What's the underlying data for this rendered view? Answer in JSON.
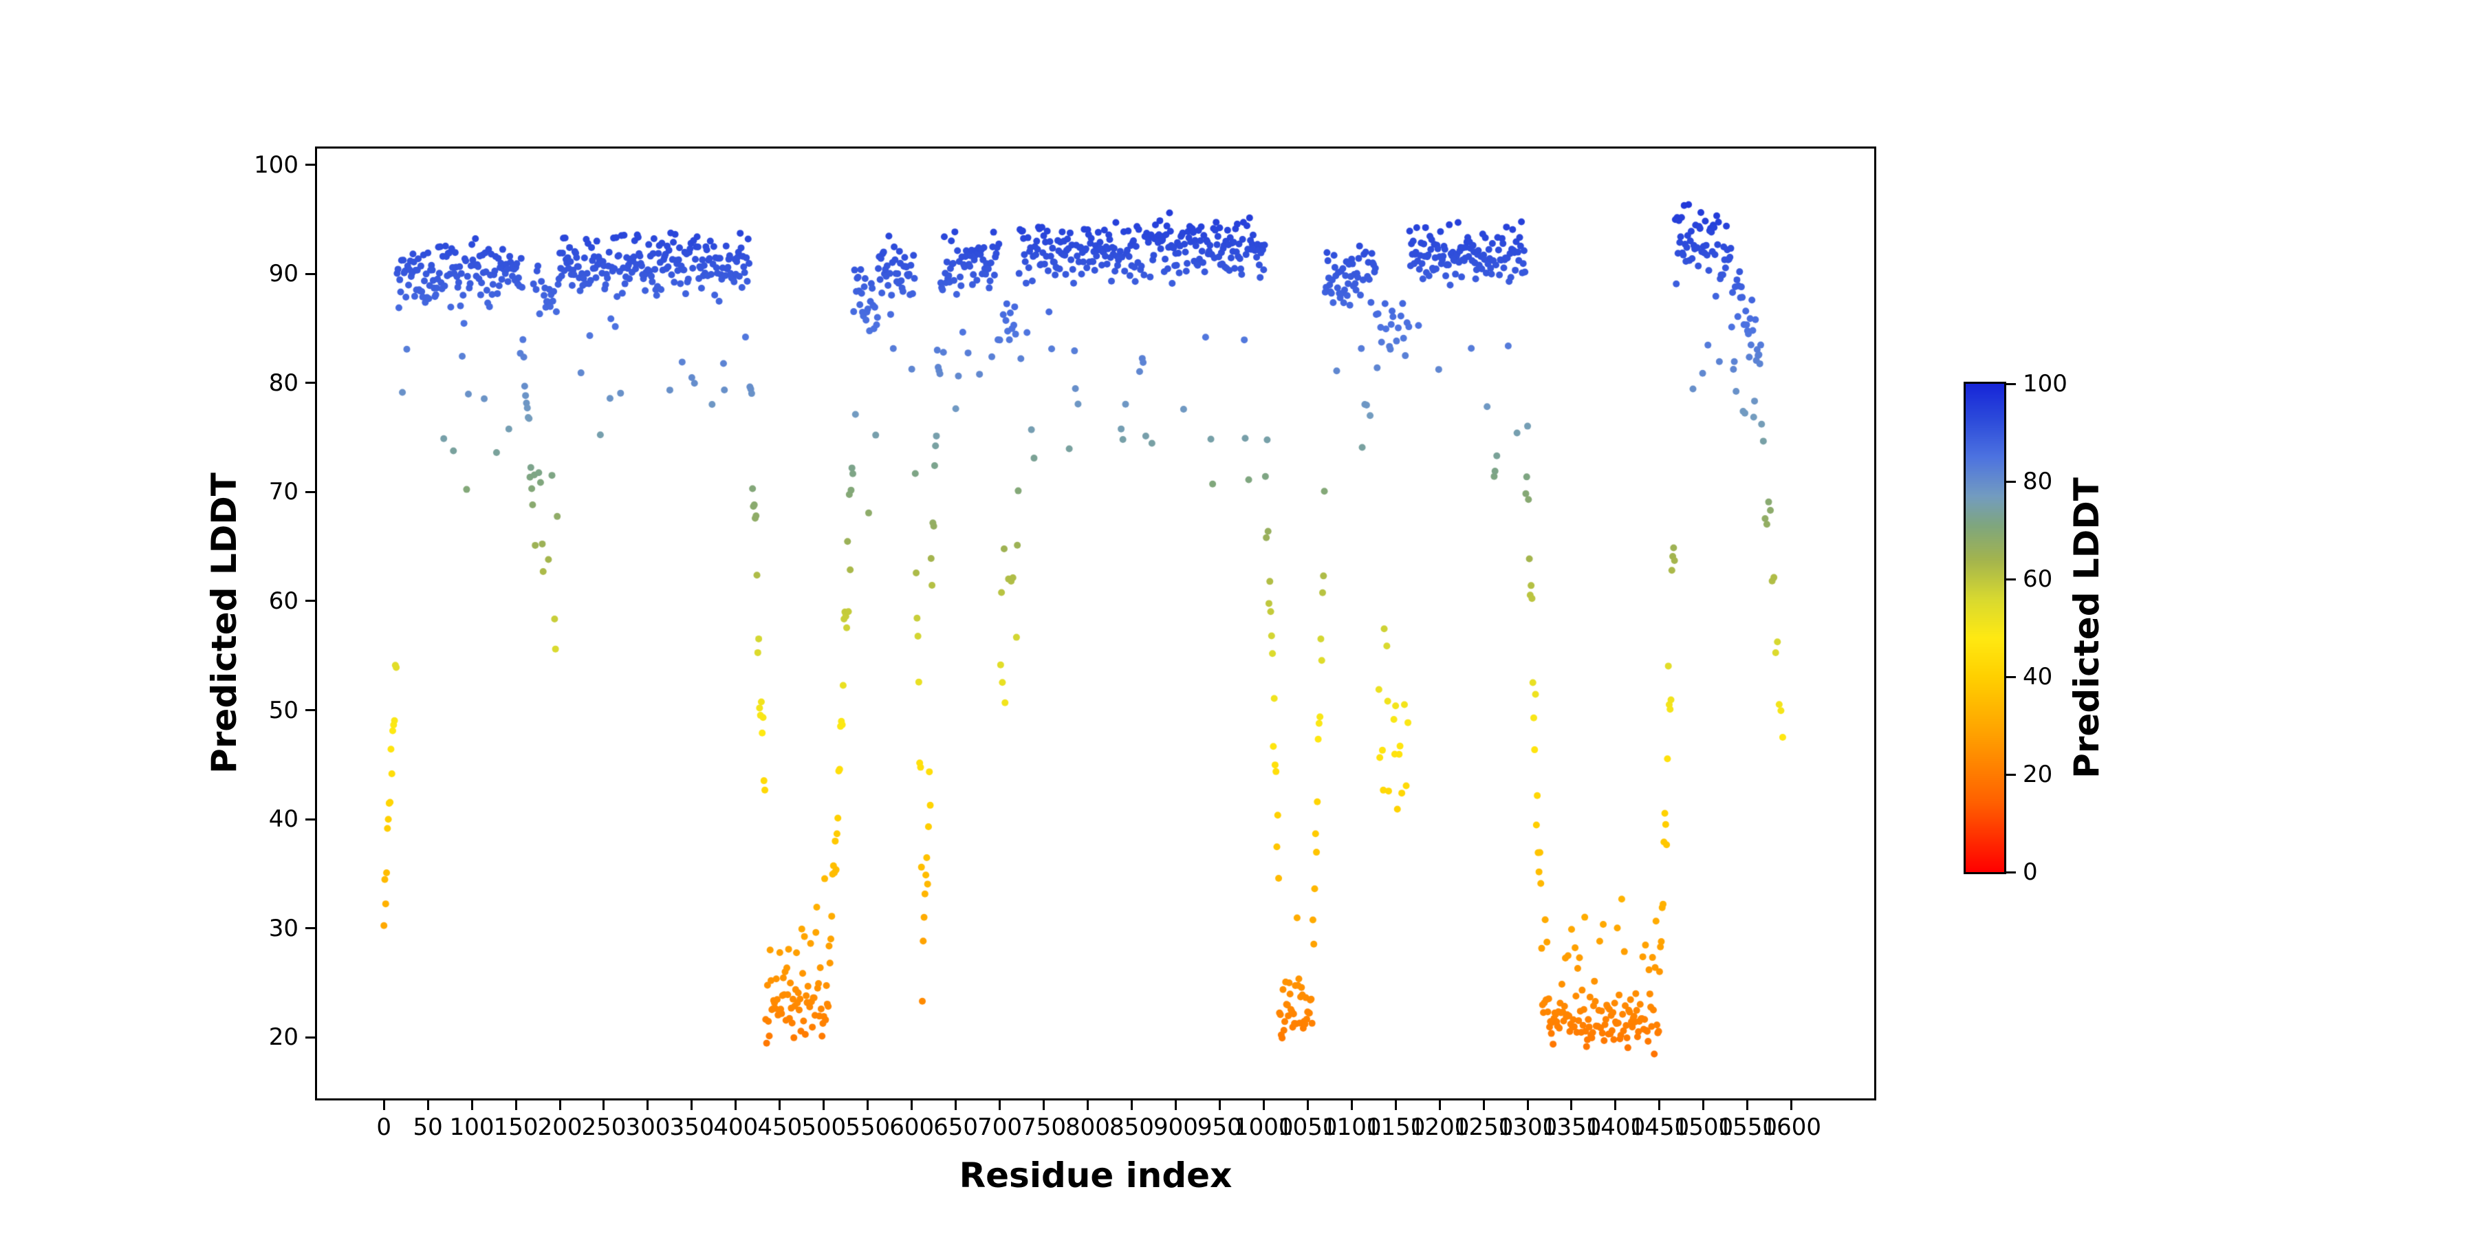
{
  "chart_data": {
    "type": "scatter",
    "title": "",
    "xlabel": "Residue index",
    "ylabel": "Predicted LDDT",
    "xlim": [
      -76,
      1694
    ],
    "ylim": [
      14.4,
      101.5
    ],
    "xticks": [
      0,
      50,
      100,
      150,
      200,
      250,
      300,
      350,
      400,
      450,
      500,
      550,
      600,
      650,
      700,
      750,
      800,
      850,
      900,
      950,
      1000,
      1050,
      1100,
      1150,
      1200,
      1250,
      1300,
      1350,
      1400,
      1450,
      1500,
      1550,
      1600
    ],
    "yticks": [
      20,
      30,
      40,
      50,
      60,
      70,
      80,
      90,
      100
    ],
    "grid": false,
    "legend": "none",
    "point_radius_px": 5,
    "point_value_range": [
      17.6,
      98.6
    ],
    "seed": 42,
    "colormap": {
      "stops": [
        [
          0.0,
          "#ff0000"
        ],
        [
          0.14,
          "#ff5f00"
        ],
        [
          0.28,
          "#ffa000"
        ],
        [
          0.4,
          "#ffd000"
        ],
        [
          0.48,
          "#ffe912"
        ],
        [
          0.56,
          "#d8d930"
        ],
        [
          0.64,
          "#a3b44e"
        ],
        [
          0.71,
          "#7fa67e"
        ],
        [
          0.77,
          "#739cc0"
        ],
        [
          0.85,
          "#4d73e0"
        ],
        [
          0.93,
          "#2b49da"
        ],
        [
          1.0,
          "#1726d8"
        ]
      ]
    },
    "colorbar": {
      "label": "Predicted LDDT",
      "vmin": 0,
      "vmax": 100,
      "ticks": [
        0,
        20,
        40,
        60,
        80,
        100
      ]
    },
    "points_encoding": "segments",
    "segments": [
      {
        "x0": 0,
        "x1": 15,
        "y0": 30,
        "y1": 58,
        "jitter": 5
      },
      {
        "x0": 15,
        "x1": 158,
        "y0": 90,
        "y1": 90,
        "jitter": 3.4,
        "out_p": 0.1,
        "out_lo": -18,
        "out_hi": -5
      },
      {
        "x0": 158,
        "x1": 170,
        "y0": 84,
        "y1": 68,
        "jitter": 4
      },
      {
        "x0": 170,
        "x1": 198,
        "y0": 88,
        "y1": 88,
        "jitter": 3.5,
        "out_p": 0.5,
        "out_lo": -33,
        "out_hi": -16
      },
      {
        "x0": 198,
        "x1": 416,
        "y0": 90.5,
        "y1": 91,
        "jitter": 3.2,
        "out_p": 0.08,
        "out_lo": -14,
        "out_hi": -4
      },
      {
        "x0": 416,
        "x1": 434,
        "y0": 80,
        "y1": 40,
        "jitter": 6
      },
      {
        "x0": 434,
        "x1": 506,
        "y0": 23,
        "y1": 23,
        "jitter": 4,
        "out_p": 0.1,
        "out_lo": 3,
        "out_hi": 9
      },
      {
        "x0": 506,
        "x1": 534,
        "y0": 26,
        "y1": 74,
        "jitter": 6
      },
      {
        "x0": 534,
        "x1": 548,
        "y0": 88,
        "y1": 89,
        "jitter": 3.4,
        "out_p": 0.12,
        "out_lo": -14,
        "out_hi": -4
      },
      {
        "x0": 548,
        "x1": 562,
        "y0": 87,
        "y1": 87,
        "jitter": 3.6,
        "out_p": 0.45,
        "out_lo": -29,
        "out_hi": -9
      },
      {
        "x0": 562,
        "x1": 604,
        "y0": 90.5,
        "y1": 90.5,
        "jitter": 3.2,
        "out_p": 0.12,
        "out_lo": -16,
        "out_hi": -5
      },
      {
        "x0": 604,
        "x1": 612,
        "y0": 72,
        "y1": 34,
        "jitter": 7
      },
      {
        "x0": 612,
        "x1": 622,
        "y0": 27,
        "y1": 42,
        "jitter": 6
      },
      {
        "x0": 622,
        "x1": 632,
        "y0": 62,
        "y1": 86,
        "jitter": 6
      },
      {
        "x0": 632,
        "x1": 700,
        "y0": 90.5,
        "y1": 91.5,
        "jitter": 3.2,
        "out_p": 0.1,
        "out_lo": -15,
        "out_hi": -4
      },
      {
        "x0": 700,
        "x1": 722,
        "y0": 85,
        "y1": 85,
        "jitter": 4,
        "out_p": 0.5,
        "out_lo": -38,
        "out_hi": -14
      },
      {
        "x0": 722,
        "x1": 1002,
        "y0": 92,
        "y1": 92.5,
        "jitter": 3.4,
        "out_p": 0.09,
        "out_lo": -21,
        "out_hi": -4
      },
      {
        "x0": 1002,
        "x1": 1018,
        "y0": 74,
        "y1": 32,
        "jitter": 8
      },
      {
        "x0": 1018,
        "x1": 1056,
        "y0": 23,
        "y1": 23,
        "jitter": 3.6,
        "out_p": 0.1,
        "out_lo": 3,
        "out_hi": 9
      },
      {
        "x0": 1056,
        "x1": 1070,
        "y0": 27,
        "y1": 72,
        "jitter": 7
      },
      {
        "x0": 1070,
        "x1": 1128,
        "y0": 89,
        "y1": 90,
        "jitter": 3.3,
        "out_p": 0.12,
        "out_lo": -18,
        "out_hi": -5
      },
      {
        "x0": 1128,
        "x1": 1166,
        "y0": 85,
        "y1": 85,
        "jitter": 4,
        "out_p": 0.55,
        "out_lo": -44,
        "out_hi": -26
      },
      {
        "x0": 1166,
        "x1": 1298,
        "y0": 91.5,
        "y1": 92,
        "jitter": 3.3,
        "out_p": 0.1,
        "out_lo": -22,
        "out_hi": -5
      },
      {
        "x0": 1298,
        "x1": 1316,
        "y0": 76,
        "y1": 30,
        "jitter": 7
      },
      {
        "x0": 1316,
        "x1": 1452,
        "y0": 21.5,
        "y1": 21.5,
        "jitter": 3.2,
        "out_p": 0.12,
        "out_lo": 3,
        "out_hi": 9
      },
      {
        "x0": 1452,
        "x1": 1468,
        "y0": 26,
        "y1": 70,
        "jitter": 8
      },
      {
        "x0": 1468,
        "x1": 1532,
        "y0": 93.5,
        "y1": 92.5,
        "jitter": 3.4,
        "out_p": 0.08,
        "out_lo": -16,
        "out_hi": -4
      },
      {
        "x0": 1532,
        "x1": 1566,
        "y0": 90,
        "y1": 82,
        "jitter": 3.2,
        "out_p": 0.12,
        "out_lo": -10,
        "out_hi": -3
      },
      {
        "x0": 1566,
        "x1": 1592,
        "y0": 76,
        "y1": 46,
        "jitter": 5,
        "step": 2
      }
    ]
  }
}
